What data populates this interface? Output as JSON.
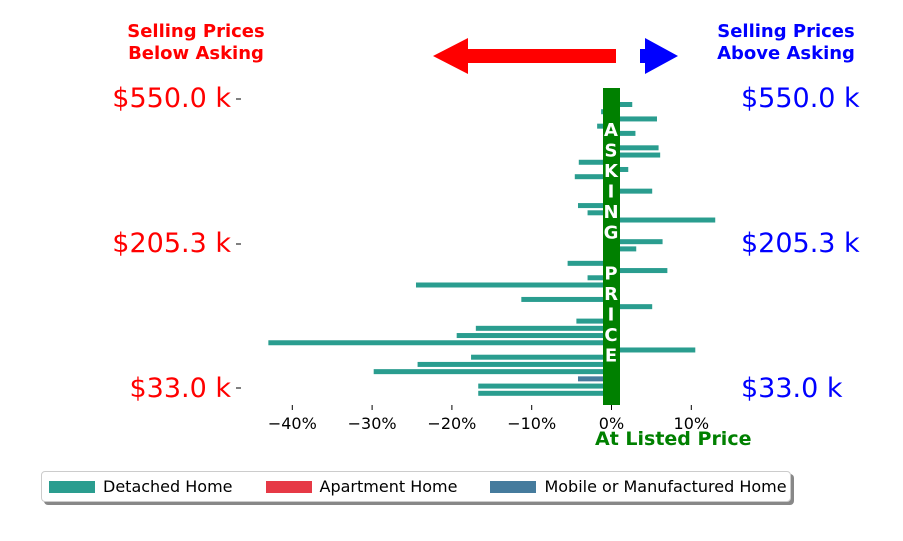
{
  "chart_data": {
    "type": "bar",
    "orientation": "horizontal",
    "title_left": [
      "Selling Prices",
      "Below Asking"
    ],
    "title_right": [
      "Selling Prices",
      "Above Asking"
    ],
    "price_ticks": [
      "$550.0 k",
      "$205.3 k",
      "$33.0 k"
    ],
    "x_ticks": [
      {
        "value": -40,
        "label": "−40%"
      },
      {
        "value": -30,
        "label": "−30%"
      },
      {
        "value": -20,
        "label": "−20%"
      },
      {
        "value": -10,
        "label": "−10%"
      },
      {
        "value": 0,
        "label": "0%"
      },
      {
        "value": 10,
        "label": "10%"
      }
    ],
    "xlim": [
      -45,
      16
    ],
    "asking_price_band_text": [
      "A",
      "S",
      "K",
      "I",
      "N",
      "G",
      "",
      "P",
      "R",
      "I",
      "C",
      "E"
    ],
    "zero_line_label": "At Listed Price",
    "legend": [
      {
        "name": "Detached Home",
        "color": "#2a9d8f"
      },
      {
        "name": "Apartment Home",
        "color": "#e63946"
      },
      {
        "name": "Mobile or Manufactured Home",
        "color": "#457b9d"
      }
    ],
    "bars": [
      {
        "value": 2.6,
        "category": "Detached Home"
      },
      {
        "value": -1.3,
        "category": "Detached Home"
      },
      {
        "value": 5.7,
        "category": "Detached Home"
      },
      {
        "value": -1.8,
        "category": "Detached Home"
      },
      {
        "value": 3.0,
        "category": "Detached Home"
      },
      {
        "value": 0.3,
        "category": "Detached Home"
      },
      {
        "value": 5.9,
        "category": "Detached Home"
      },
      {
        "value": 6.1,
        "category": "Detached Home"
      },
      {
        "value": -4.1,
        "category": "Detached Home"
      },
      {
        "value": 2.1,
        "category": "Detached Home"
      },
      {
        "value": -4.6,
        "category": "Detached Home"
      },
      {
        "value": 0.3,
        "category": "Detached Home"
      },
      {
        "value": 5.1,
        "category": "Detached Home"
      },
      {
        "value": 0.3,
        "category": "Detached Home"
      },
      {
        "value": -4.2,
        "category": "Detached Home"
      },
      {
        "value": -3.0,
        "category": "Detached Home"
      },
      {
        "value": 13.0,
        "category": "Detached Home"
      },
      {
        "value": 0.3,
        "category": "Detached Home"
      },
      {
        "value": 0.3,
        "category": "Detached Home"
      },
      {
        "value": 6.4,
        "category": "Detached Home"
      },
      {
        "value": 3.1,
        "category": "Detached Home"
      },
      {
        "value": 0.3,
        "category": "Detached Home"
      },
      {
        "value": -5.5,
        "category": "Detached Home"
      },
      {
        "value": 7.0,
        "category": "Detached Home"
      },
      {
        "value": -3.0,
        "category": "Detached Home"
      },
      {
        "value": -24.5,
        "category": "Detached Home"
      },
      {
        "value": 0.3,
        "category": "Detached Home"
      },
      {
        "value": -11.3,
        "category": "Detached Home"
      },
      {
        "value": 5.1,
        "category": "Detached Home"
      },
      {
        "value": 0.3,
        "category": "Detached Home"
      },
      {
        "value": -4.4,
        "category": "Detached Home"
      },
      {
        "value": -17.0,
        "category": "Detached Home"
      },
      {
        "value": -19.4,
        "category": "Detached Home"
      },
      {
        "value": -43.0,
        "category": "Detached Home"
      },
      {
        "value": 10.5,
        "category": "Detached Home"
      },
      {
        "value": -17.6,
        "category": "Detached Home"
      },
      {
        "value": -24.3,
        "category": "Detached Home"
      },
      {
        "value": -29.8,
        "category": "Detached Home"
      },
      {
        "value": -4.2,
        "category": "Mobile or Manufactured Home"
      },
      {
        "value": -16.7,
        "category": "Detached Home"
      },
      {
        "value": -16.7,
        "category": "Detached Home"
      }
    ]
  }
}
